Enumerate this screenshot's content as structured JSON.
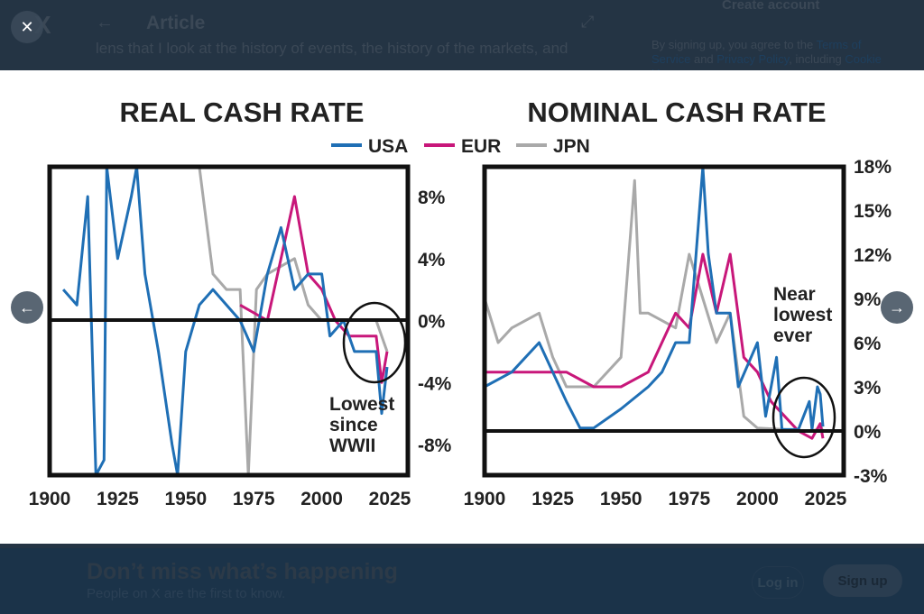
{
  "background": {
    "header_title": "Article",
    "article_snippet": "lens that I look at the history of events, the history of the markets, and",
    "create_account": "Create account",
    "terms_prefix": "By signing up, you agree to the ",
    "terms_link": "Terms of Service",
    "terms_and": " and ",
    "privacy_link": "Privacy Policy",
    "terms_including": ", including ",
    "cookie_link": "Cookie Use",
    "banner_title": "Don’t miss what’s happening",
    "banner_subtitle": "People on X are the first to know.",
    "login_label": "Log in",
    "signup_label": "Sign up"
  },
  "lightbox": {
    "close_icon": "close-icon",
    "prev_icon": "arrow-left-icon",
    "next_icon": "arrow-right-icon"
  },
  "colors": {
    "USA": "#1f6fb5",
    "EUR": "#c8177a",
    "JPN": "#a9a9a9"
  },
  "chart_data": [
    {
      "type": "line",
      "title": "REAL CASH RATE",
      "x_ticks": [
        "1900",
        "1925",
        "1950",
        "1975",
        "2000",
        "2025"
      ],
      "y_ticks": [
        "8%",
        "4%",
        "0%",
        "-4%",
        "-8%"
      ],
      "ylim": [
        -10,
        10
      ],
      "xlim": [
        1900,
        2032
      ],
      "annotation": [
        "Lowest",
        "since",
        "WWII"
      ],
      "series": [
        {
          "name": "USA",
          "x": [
            1905,
            1910,
            1914,
            1917,
            1920,
            1921,
            1925,
            1930,
            1932,
            1935,
            1940,
            1945,
            1947,
            1950,
            1955,
            1960,
            1970,
            1975,
            1980,
            1985,
            1990,
            1995,
            2000,
            2003,
            2008,
            2012,
            2020,
            2022,
            2024
          ],
          "y": [
            2,
            1,
            8,
            -10,
            -9,
            10,
            4,
            8,
            10,
            3,
            -2,
            -8,
            -10,
            -2,
            1,
            2,
            0,
            -2,
            3,
            6,
            2,
            3,
            3,
            -1,
            0,
            -2,
            -2,
            -6,
            -3
          ]
        },
        {
          "name": "EUR",
          "x": [
            1970,
            1980,
            1985,
            1990,
            1995,
            2000,
            2005,
            2010,
            2015,
            2020,
            2022,
            2024
          ],
          "y": [
            1,
            0,
            4,
            8,
            3,
            2,
            0,
            -1,
            -1,
            -1,
            -4,
            -2
          ]
        },
        {
          "name": "JPN",
          "x": [
            1955,
            1960,
            1965,
            1970,
            1973,
            1976,
            1980,
            1990,
            1995,
            2000,
            2010,
            2020,
            2024
          ],
          "y": [
            10,
            3,
            2,
            2,
            -10,
            2,
            3,
            4,
            1,
            0,
            0,
            0,
            -2
          ]
        }
      ]
    },
    {
      "type": "line",
      "title": "NOMINAL CASH RATE",
      "x_ticks": [
        "1900",
        "1925",
        "1950",
        "1975",
        "2000",
        "2025"
      ],
      "y_ticks": [
        "18%",
        "15%",
        "12%",
        "9%",
        "6%",
        "3%",
        "0%",
        "-3%"
      ],
      "ylim": [
        -3,
        18
      ],
      "xlim": [
        1900,
        2032
      ],
      "annotation": [
        "Near",
        "lowest",
        "ever"
      ],
      "series": [
        {
          "name": "USA",
          "x": [
            1900,
            1910,
            1920,
            1925,
            1930,
            1935,
            1940,
            1950,
            1960,
            1965,
            1970,
            1975,
            1980,
            1982,
            1985,
            1990,
            1993,
            2000,
            2003,
            2007,
            2009,
            2015,
            2019,
            2020,
            2022,
            2023,
            2024
          ],
          "y": [
            3,
            4,
            6,
            4,
            2,
            0.2,
            0.2,
            1.5,
            3,
            4,
            6,
            6,
            18,
            12,
            8,
            8,
            3,
            6,
            1,
            5,
            0.1,
            0.1,
            2,
            0.1,
            3,
            2.5,
            0.3
          ]
        },
        {
          "name": "EUR",
          "x": [
            1900,
            1920,
            1930,
            1940,
            1950,
            1960,
            1970,
            1975,
            1980,
            1985,
            1990,
            1995,
            2000,
            2005,
            2010,
            2015,
            2020,
            2023,
            2024
          ],
          "y": [
            4,
            4,
            4,
            3,
            3,
            4,
            8,
            7,
            12,
            8,
            12,
            5,
            4,
            2,
            1,
            0,
            -0.5,
            0.5,
            -0.5
          ]
        },
        {
          "name": "JPN",
          "x": [
            1900,
            1905,
            1910,
            1920,
            1925,
            1930,
            1935,
            1940,
            1950,
            1955,
            1957,
            1960,
            1970,
            1975,
            1980,
            1985,
            1990,
            1995,
            2000,
            2010,
            2020,
            2024
          ],
          "y": [
            9,
            6,
            7,
            8,
            5,
            3,
            3,
            3,
            5,
            17,
            8,
            8,
            7,
            12,
            9,
            6,
            8,
            1,
            0.2,
            0.1,
            0,
            0.2
          ]
        }
      ]
    }
  ]
}
